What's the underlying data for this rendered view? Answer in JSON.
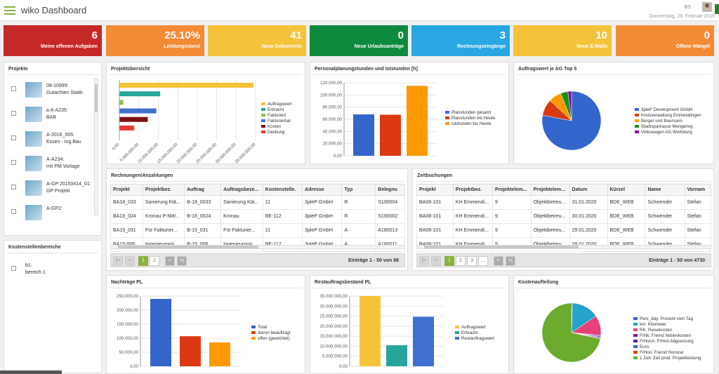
{
  "header": {
    "title": "wiko Dashboard",
    "user": "BS",
    "date": "Donnerstag, 28. Februar 2019"
  },
  "tiles": [
    {
      "value": "6",
      "label": "Meine offenen Aufgaben",
      "color": "#c62828"
    },
    {
      "value": "25.10%",
      "label": "Leistungsstand",
      "color": "#f38b35"
    },
    {
      "value": "41",
      "label": "Neue Dokumente",
      "color": "#f4c33a"
    },
    {
      "value": "0",
      "label": "Neue Urlaubsanträge",
      "color": "#0e8a3e"
    },
    {
      "value": "3",
      "label": "Rechnungseingänge",
      "color": "#28a7e2"
    },
    {
      "value": "10",
      "label": "Neue E-Mails",
      "color": "#f4c33a"
    },
    {
      "value": "0",
      "label": "Offene Mängel",
      "color": "#f38b35"
    }
  ],
  "projekte": {
    "title": "Projekte",
    "items": [
      {
        "line1": "08-10999:",
        "line2": "Gutachten Statik"
      },
      {
        "line1": "a A-A235:",
        "line2": "BAB"
      },
      {
        "line1": "A-2016_005:",
        "line2": "Essen - Ing.Bau"
      },
      {
        "line1": "A-A234:",
        "line2": "mit PM Vorlage"
      },
      {
        "line1": "A-GP 20150414_01:",
        "line2": "GP Projekt"
      },
      {
        "line1": "A-GP2:",
        "line2": ""
      }
    ]
  },
  "kostenstellen": {
    "title": "Kostenstellenbereiche",
    "items": [
      {
        "line1": "b1:",
        "line2": "bereich 1"
      }
    ]
  },
  "projektuebersicht": {
    "title": "Projektübersicht"
  },
  "personal": {
    "title": "Personalplanungstunden und Iststunden [h]"
  },
  "auftragswert": {
    "title": "Auftragswert je AG Top 5"
  },
  "rechnungen": {
    "title": "Rechnungen/Anzahlungen",
    "columns": [
      "Projekt",
      "Projektbez.",
      "Auftrag",
      "Auftragsbeze...",
      "Kostenstelle.",
      "Adresse",
      "Typ",
      "Belegnu"
    ],
    "rows": [
      [
        "BA18_033",
        "Sanierung Klä...",
        "B-18_0033",
        "Sanierung Klä...",
        "11",
        "3pleP GmbH",
        "R",
        "S190004"
      ],
      [
        "BA18_024",
        "Kronau P-NW...",
        "B-18_0024",
        "Kronau",
        "BE-112",
        "3pleP GmbH",
        "R",
        "S190002"
      ],
      [
        "BA15_031",
        "Für Fakturier...",
        "B-15_031",
        "Für Fakturier...",
        "11",
        "3pleP GmbH",
        "A",
        "A180013"
      ],
      [
        "BA15-006",
        "Ingenieurproj...",
        "B-15_006",
        "Ingenieurproj...",
        "BE-112",
        "3pleP GmbH",
        "A",
        "A180011"
      ]
    ],
    "pages": [
      "1",
      "2"
    ],
    "info": "Einträge 1 - 50 von 86"
  },
  "zeitbuchungen": {
    "title": "Zeitbuchungen",
    "columns": [
      "Projekt",
      "Projektbez.",
      "Projektelem...",
      "Projektelem...",
      "Datum",
      "Kürzel",
      "Name",
      "Vornam"
    ],
    "rows": [
      [
        "BA08-101",
        "KH Emmendi...",
        "9",
        "Objektbetreu...",
        "31.01.2020",
        "BDE_WEB",
        "Schwender",
        "Stefan"
      ],
      [
        "BA08-101",
        "KH Emmendi...",
        "9",
        "Objektbetreu...",
        "30.01.2020",
        "BDE_WEB",
        "Schwender",
        "Stefan"
      ],
      [
        "BA08-101",
        "KH Emmendi...",
        "9",
        "Objektbetreu...",
        "29.01.2020",
        "BDE_WEB",
        "Schwender",
        "Stefan"
      ],
      [
        "BA08-101",
        "KH Emmendi...",
        "9",
        "Objektbetreu...",
        "28.01.2020",
        "BDE_WEB",
        "Schwender",
        "Stefan"
      ]
    ],
    "pages": [
      "1",
      "2",
      "3",
      "..."
    ],
    "info": "Einträge 1 - 50 von 4730"
  },
  "nachtraege": {
    "title": "Nachträge PL"
  },
  "restauftrag": {
    "title": "Restauftragsbestand PL"
  },
  "kostenaufteilung": {
    "title": "Kostenaufteilung"
  },
  "chart_data": [
    {
      "type": "bar",
      "orientation": "horizontal",
      "title": "Projektübersicht",
      "categories": [
        "Auftragswert",
        "Erbracht",
        "Fakturiert",
        "Fakturierbar",
        "Kosten",
        "Deckung"
      ],
      "values": [
        34500000,
        10500000,
        1000000,
        9500000,
        7300000,
        3800000
      ],
      "colors": [
        "#f4c33a",
        "#26a69a",
        "#8bc34a",
        "#3f6fcf",
        "#7b1010",
        "#e53935"
      ],
      "ticks": [
        "0,00",
        "5.000.000,00",
        "10.000.000,00",
        "15.000.000,00",
        "20.000.000,00",
        "25.000.000,00",
        "30.000.000,00",
        "35.000.000,00"
      ],
      "xlim": [
        0,
        35000000
      ],
      "legend": "right"
    },
    {
      "type": "bar",
      "title": "Personalplanungstunden und Iststunden [h]",
      "categories": [
        "Planstunden gesamt",
        "Planstunden bis Heute",
        "Iststunden bis Heute"
      ],
      "values": [
        68000,
        67500,
        115000
      ],
      "colors": [
        "#3366cc",
        "#dc3912",
        "#ff9900"
      ],
      "ticks": [
        "0,00",
        "20.000,00",
        "40.000,00",
        "60.000,00",
        "80.000,00",
        "100.000,00",
        "120.000,00"
      ],
      "ylim": [
        0,
        120000
      ],
      "legend": "right"
    },
    {
      "type": "pie",
      "title": "Auftragswert je AG Top 5",
      "labels": [
        "3pleP Development GmbH",
        "Kreisverwaltung Emmendingen",
        "Berger und Baumann",
        "Stadtsparkasse Mengering",
        "Volkswagen AG Wolfsburg"
      ],
      "values": [
        78,
        9,
        7,
        4,
        2
      ],
      "colors": [
        "#3366cc",
        "#dc3912",
        "#ff9900",
        "#109618",
        "#990099"
      ],
      "legend": "right"
    },
    {
      "type": "bar",
      "title": "Nachträge PL",
      "categories": [
        "Total",
        "davon beauftragt",
        "offen (gewichtet)"
      ],
      "values": [
        240000,
        107000,
        85000
      ],
      "colors": [
        "#3366cc",
        "#dc3912",
        "#ff9900"
      ],
      "ticks": [
        "0,00",
        "50.000,00",
        "100.000,00",
        "150.000,00",
        "200.000,00",
        "250.000,00"
      ],
      "ylim": [
        0,
        250000
      ],
      "legend": "right"
    },
    {
      "type": "bar",
      "title": "Restauftragsbestand PL",
      "categories": [
        "Auftragswert",
        "Erbracht",
        "Restauftragswert"
      ],
      "values": [
        35000000,
        10500000,
        24700000
      ],
      "colors": [
        "#f4c33a",
        "#26a69a",
        "#3f6fcf"
      ],
      "ticks": [
        "0,00",
        "5.000.000,00",
        "10.000.000,00",
        "15.000.000,00",
        "20.000.000,00",
        "25.000.000,00",
        "30.000.000,00",
        "35.000.000,00"
      ],
      "ylim": [
        0,
        35000000
      ],
      "legend": "right"
    },
    {
      "type": "pie",
      "title": "Kostenaufteilung",
      "labels": [
        "Perc_day: Prozent vom Tag",
        "km: Kilometer",
        "RK: Reisekosten",
        "FrNk: Fremd Nebenkosten",
        "FrHonA: FrHon Abgrenzung",
        "Euro:",
        "FrHon: Fremd Honorar",
        "1 Zeit: Zeit prod. Projektleistung"
      ],
      "values": [
        0.5,
        15,
        11,
        0.5,
        0.5,
        0.5,
        0.5,
        71.5
      ],
      "colors": [
        "#3366cc",
        "#26a3c9",
        "#e84178",
        "#6a1b9a",
        "#6a1b9a",
        "#3366cc",
        "#dc3912",
        "#6bab2e"
      ],
      "legend": "right"
    }
  ]
}
